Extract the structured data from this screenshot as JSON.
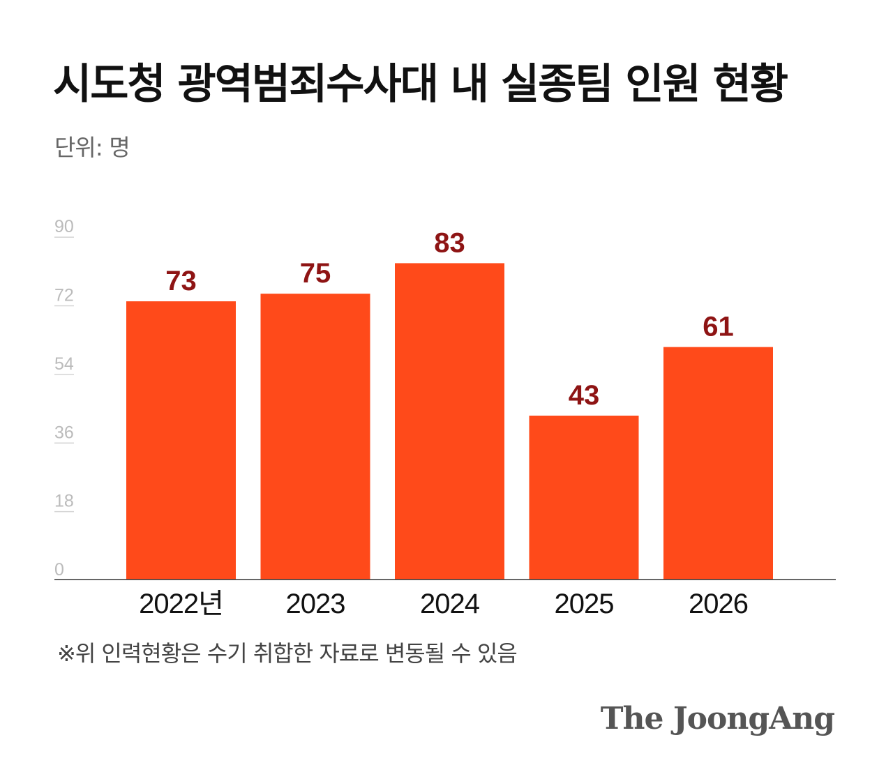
{
  "title": "시도청 광역범죄수사대 내 실종팀 인원 현황",
  "unit_label": "단위: 명",
  "footnote": "※위 인력현황은 수기 취합한 자료로 변동될 수 있음",
  "logo": "The JoongAng",
  "colors": {
    "bar": "#ff4a1a",
    "value_label": "#8e1414",
    "axis": "#333333",
    "tick": "#bbbbbb"
  },
  "chart_data": {
    "type": "bar",
    "categories": [
      "2022년",
      "2023",
      "2024",
      "2025",
      "2026"
    ],
    "values": [
      73,
      75,
      83,
      43,
      61
    ],
    "data_labels": [
      "73",
      "75",
      "83",
      "43",
      "61"
    ],
    "yticks": [
      0,
      18,
      36,
      54,
      72,
      90
    ],
    "ylim": [
      0,
      90
    ],
    "xlabel": "",
    "ylabel": "",
    "grid": false
  }
}
